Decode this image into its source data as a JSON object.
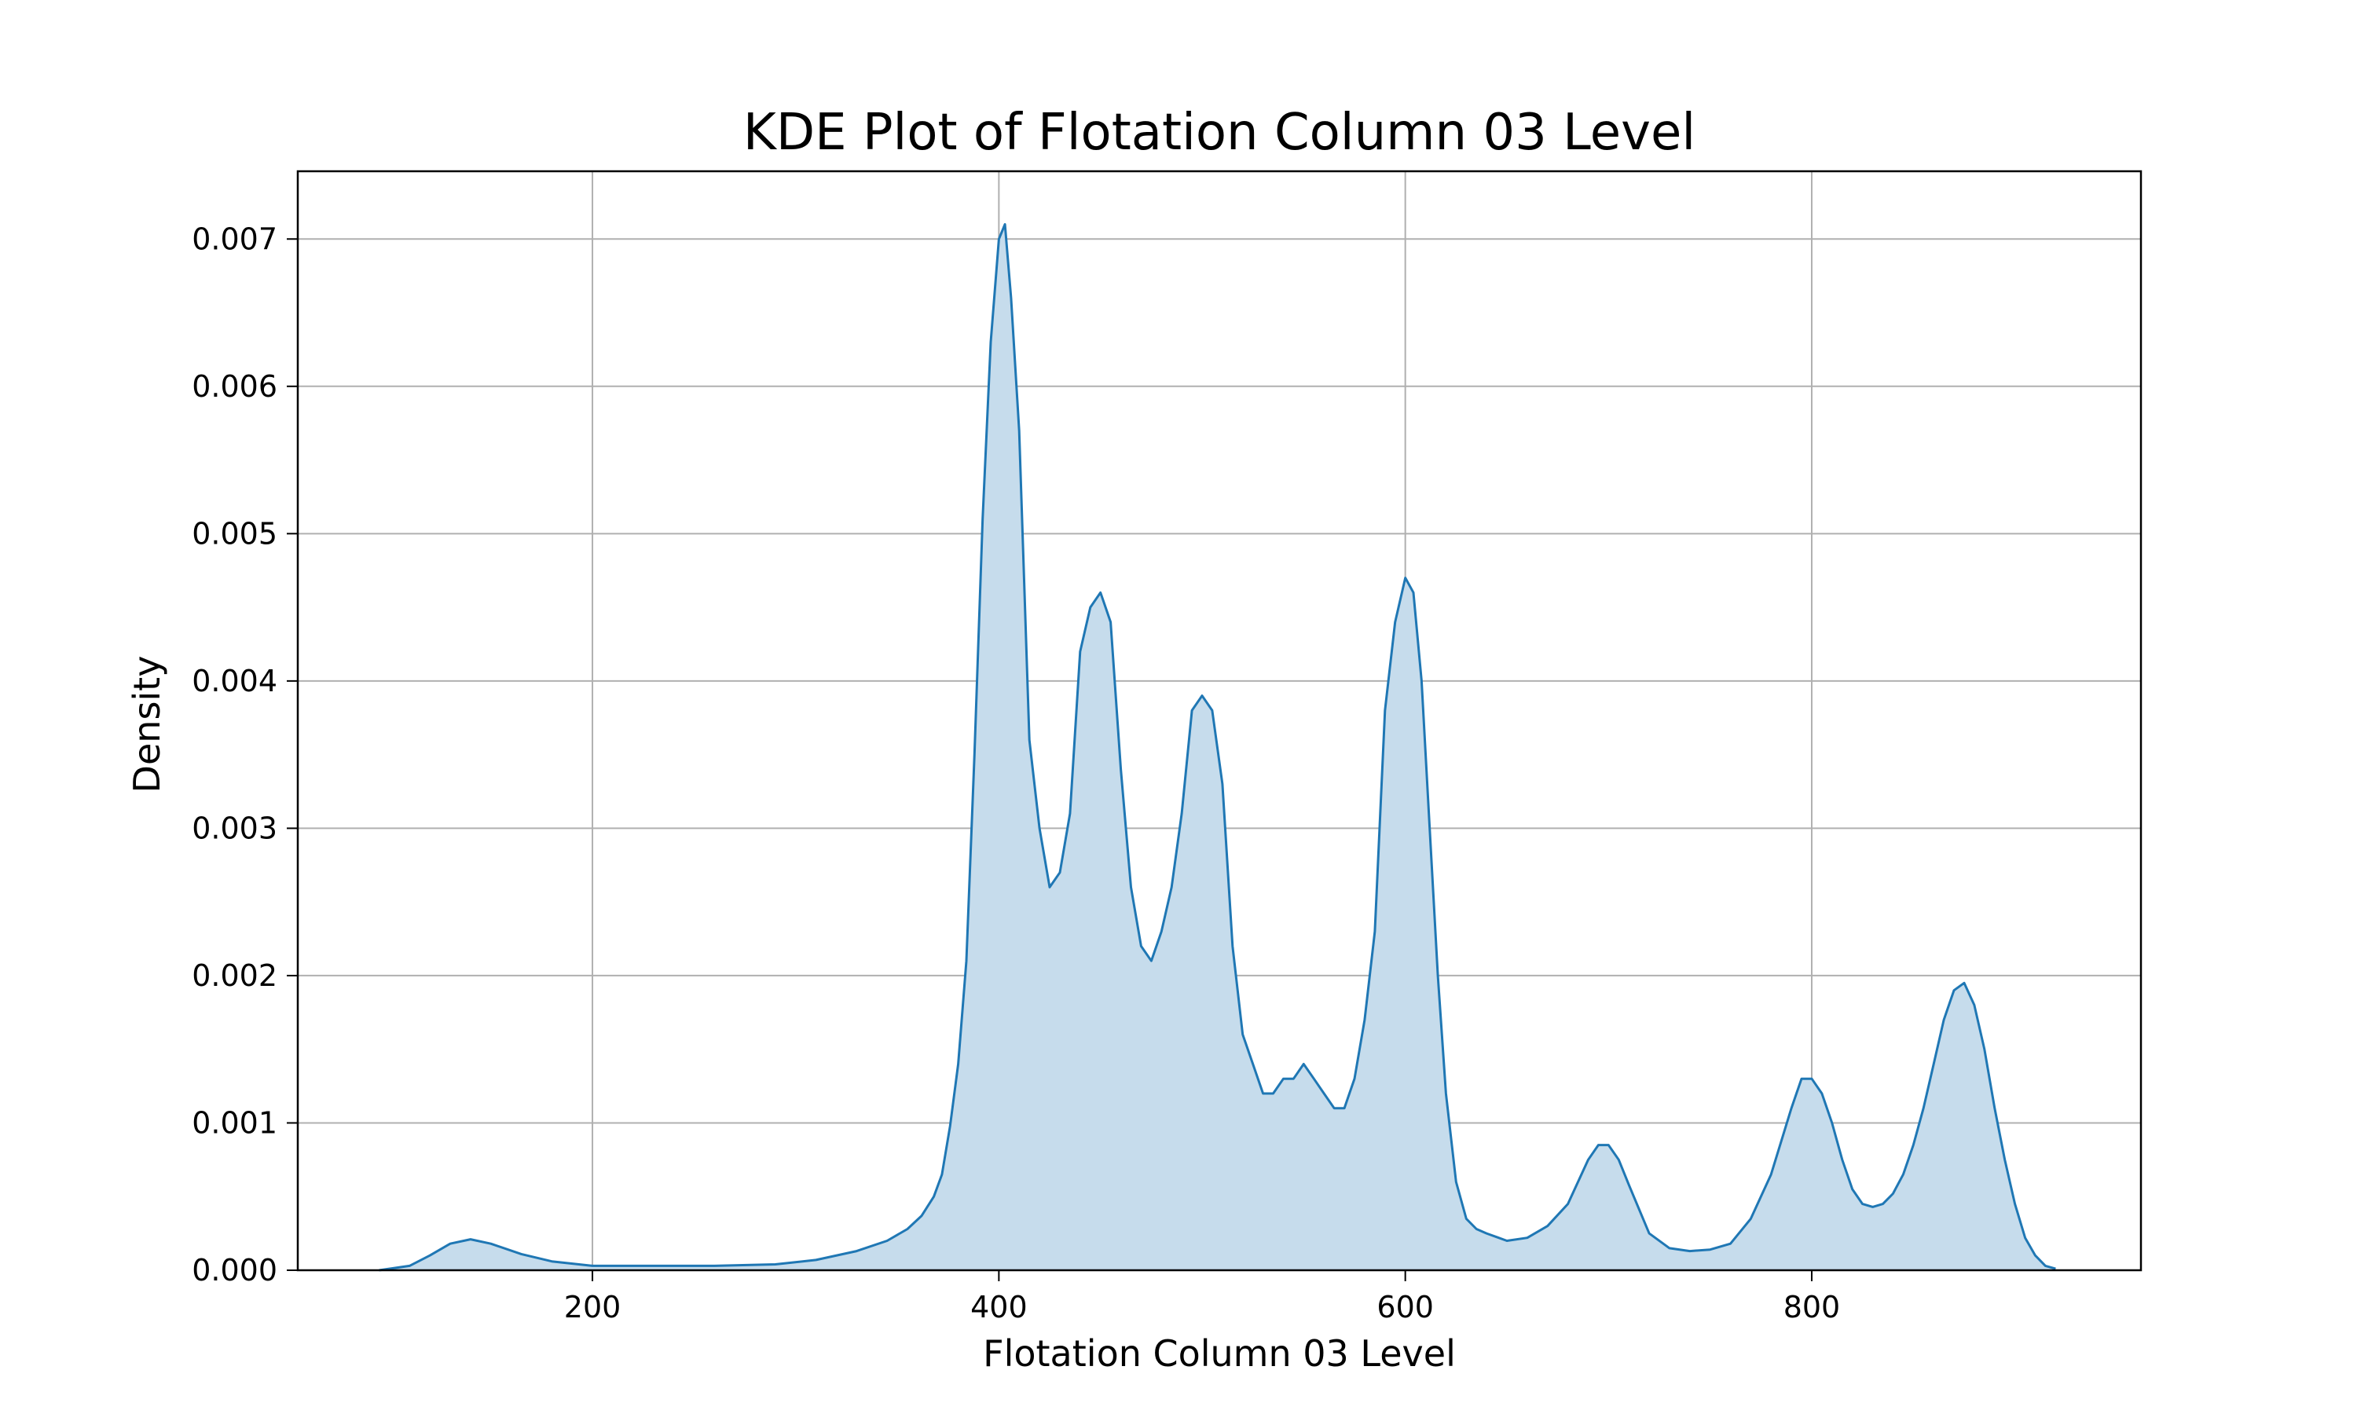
{
  "chart_data": {
    "type": "area",
    "title": "KDE Plot of Flotation Column 03 Level",
    "xlabel": "Flotation Column 03 Level",
    "ylabel": "Density",
    "xlim": [
      55,
      962
    ],
    "ylim": [
      0,
      0.00746
    ],
    "xticks": [
      200,
      400,
      600,
      800
    ],
    "xtick_labels": [
      "200",
      "400",
      "600",
      "800"
    ],
    "yticks": [
      0,
      0.001,
      0.002,
      0.003,
      0.004,
      0.005,
      0.006,
      0.007
    ],
    "ytick_labels": [
      "0.000",
      "0.001",
      "0.002",
      "0.003",
      "0.004",
      "0.005",
      "0.006",
      "0.007"
    ],
    "grid": true,
    "series": [
      {
        "color": "#1f77b4",
        "fill_color": "#c6dcec",
        "x": [
          95,
          110,
          120,
          130,
          140,
          150,
          165,
          180,
          200,
          230,
          260,
          290,
          310,
          330,
          345,
          355,
          362,
          368,
          372,
          376,
          380,
          384,
          388,
          392,
          396,
          400,
          403,
          406,
          410,
          415,
          420,
          425,
          430,
          435,
          440,
          445,
          450,
          455,
          460,
          465,
          470,
          475,
          480,
          485,
          490,
          495,
          500,
          505,
          510,
          515,
          520,
          525,
          530,
          535,
          540,
          545,
          550,
          555,
          560,
          565,
          570,
          575,
          580,
          585,
          590,
          595,
          600,
          604,
          608,
          612,
          616,
          620,
          625,
          630,
          635,
          640,
          650,
          660,
          670,
          680,
          690,
          695,
          700,
          705,
          710,
          720,
          730,
          740,
          750,
          760,
          770,
          780,
          790,
          795,
          800,
          805,
          810,
          815,
          820,
          825,
          830,
          835,
          840,
          845,
          850,
          855,
          860,
          865,
          870,
          875,
          880,
          885,
          890,
          895,
          900,
          905,
          910,
          915,
          920
        ],
        "y": [
          0.0,
          3e-05,
          0.0001,
          0.00018,
          0.00021,
          0.00018,
          0.00011,
          6e-05,
          3e-05,
          3e-05,
          3e-05,
          4e-05,
          7e-05,
          0.00013,
          0.0002,
          0.00028,
          0.00037,
          0.0005,
          0.00065,
          0.00098,
          0.0014,
          0.0021,
          0.0035,
          0.0051,
          0.0063,
          0.007,
          0.0071,
          0.0066,
          0.0057,
          0.0036,
          0.003,
          0.0026,
          0.0027,
          0.0031,
          0.0042,
          0.0045,
          0.0046,
          0.0044,
          0.0034,
          0.0026,
          0.0022,
          0.0021,
          0.0023,
          0.0026,
          0.0031,
          0.0038,
          0.0039,
          0.0038,
          0.0033,
          0.0022,
          0.0016,
          0.0014,
          0.0012,
          0.0012,
          0.0013,
          0.0013,
          0.0014,
          0.0013,
          0.0012,
          0.0011,
          0.0011,
          0.0013,
          0.0017,
          0.0023,
          0.0038,
          0.0044,
          0.0047,
          0.0046,
          0.004,
          0.003,
          0.002,
          0.0012,
          0.0006,
          0.00035,
          0.00028,
          0.00025,
          0.0002,
          0.00022,
          0.0003,
          0.00045,
          0.00075,
          0.00085,
          0.00085,
          0.00075,
          0.00058,
          0.00025,
          0.00015,
          0.00013,
          0.00014,
          0.00018,
          0.00035,
          0.00065,
          0.0011,
          0.0013,
          0.0013,
          0.0012,
          0.001,
          0.00075,
          0.00055,
          0.00045,
          0.00043,
          0.00045,
          0.00052,
          0.00065,
          0.00085,
          0.0011,
          0.0014,
          0.0017,
          0.0019,
          0.00195,
          0.0018,
          0.0015,
          0.0011,
          0.00075,
          0.00045,
          0.00022,
          0.0001,
          3e-05,
          1e-05
        ]
      }
    ]
  }
}
